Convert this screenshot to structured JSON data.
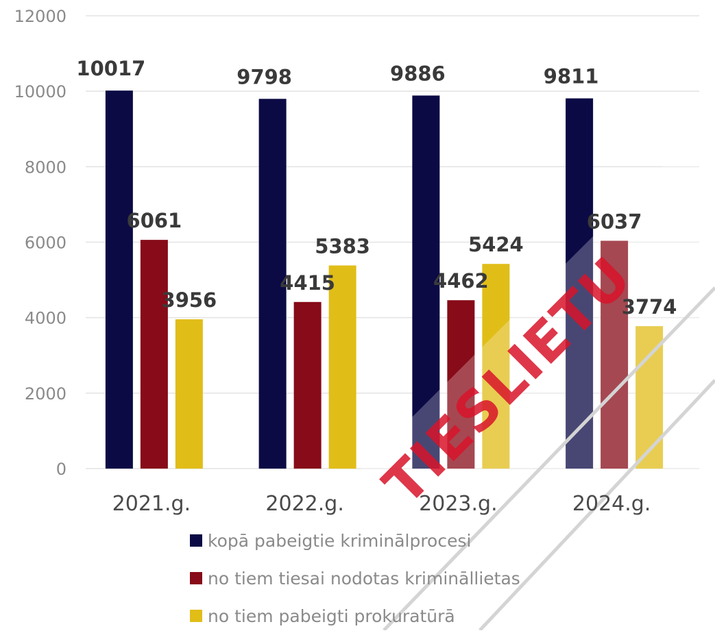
{
  "chart_data": {
    "type": "bar",
    "categories": [
      "2021.g.",
      "2022.g.",
      "2023.g.",
      "2024.g."
    ],
    "series": [
      {
        "name": "kopā pabeigtie kriminālprocesi",
        "color": "#0b0a45",
        "values": [
          10017,
          9798,
          9886,
          9811
        ]
      },
      {
        "name": "no tiem tiesai  nodotas krimināllietas",
        "color": "#870b18",
        "values": [
          6061,
          4415,
          4462,
          6037
        ]
      },
      {
        "name": "no tiem pabeigti prokuratūrā",
        "color": "#e1bd18",
        "values": [
          3956,
          5383,
          5424,
          3774
        ]
      }
    ],
    "yticks": [
      "0",
      "2000",
      "4000",
      "6000",
      "8000",
      "10000",
      "12000"
    ],
    "ylim": [
      0,
      12000
    ],
    "grid": true,
    "legend_position": "bottom",
    "data_labels": true
  },
  "watermark": {
    "text": "TIESLIETU",
    "color": "#d8142a"
  }
}
